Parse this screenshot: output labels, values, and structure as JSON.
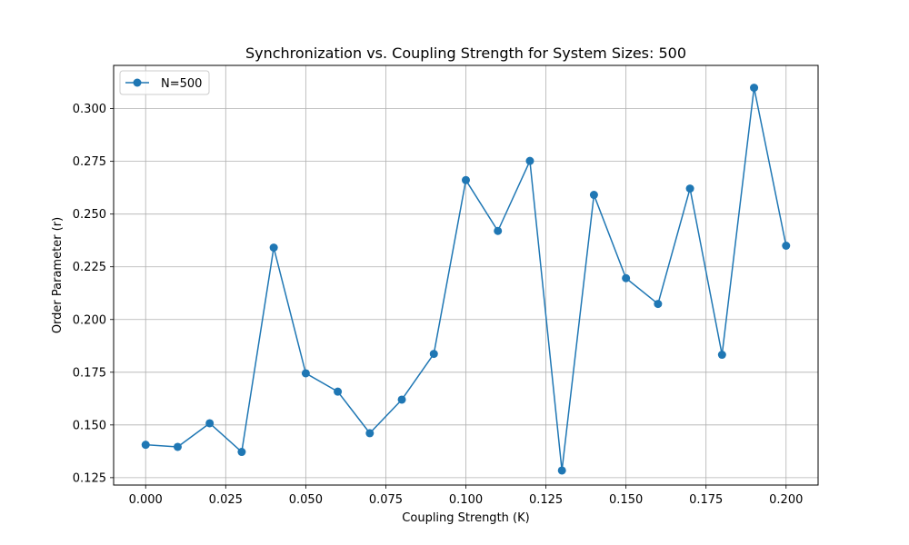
{
  "chart_data": {
    "type": "line",
    "title": "Synchronization vs. Coupling Strength for System Sizes: 500",
    "xlabel": "Coupling Strength (K)",
    "ylabel": "Order Parameter (r)",
    "xlim": [
      -0.01,
      0.21
    ],
    "ylim": [
      0.1215,
      0.3205
    ],
    "xticks": [
      "0.000",
      "0.025",
      "0.050",
      "0.075",
      "0.100",
      "0.125",
      "0.150",
      "0.175",
      "0.200"
    ],
    "yticks": [
      "0.125",
      "0.150",
      "0.175",
      "0.200",
      "0.225",
      "0.250",
      "0.275",
      "0.300"
    ],
    "grid": true,
    "legend": "top-left",
    "series": [
      {
        "name": "N=500",
        "color": "#1f77b4",
        "marker": "circle",
        "x": [
          0.0,
          0.01,
          0.02,
          0.03,
          0.04,
          0.05,
          0.06,
          0.07,
          0.08,
          0.09,
          0.1,
          0.11,
          0.12,
          0.13,
          0.14,
          0.15,
          0.16,
          0.17,
          0.18,
          0.19,
          0.2
        ],
        "y": [
          0.1406,
          0.1396,
          0.1508,
          0.1372,
          0.2341,
          0.1745,
          0.1658,
          0.1461,
          0.162,
          0.1837,
          0.2661,
          0.242,
          0.2752,
          0.1284,
          0.2591,
          0.2196,
          0.2074,
          0.2621,
          0.1833,
          0.3099,
          0.235
        ]
      }
    ]
  }
}
